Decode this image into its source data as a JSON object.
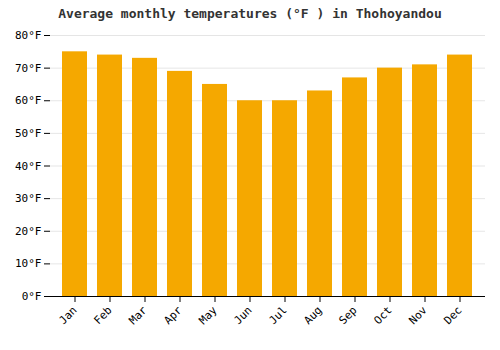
{
  "chart_data": {
    "type": "bar",
    "title": "Average monthly temperatures (°F ) in Thohoyandou",
    "categories": [
      "Jan",
      "Feb",
      "Mar",
      "Apr",
      "May",
      "Jun",
      "Jul",
      "Aug",
      "Sep",
      "Oct",
      "Nov",
      "Dec"
    ],
    "values": [
      75,
      74,
      73,
      69,
      65,
      60,
      60,
      63,
      67,
      70,
      71,
      74
    ],
    "color": "#F5A800",
    "ylim": [
      0,
      80
    ],
    "yticks": [
      {
        "value": 0,
        "label": "0°F"
      },
      {
        "value": 10,
        "label": "10°F"
      },
      {
        "value": 20,
        "label": "20°F"
      },
      {
        "value": 30,
        "label": "30°F"
      },
      {
        "value": 40,
        "label": "40°F"
      },
      {
        "value": 50,
        "label": "50°F"
      },
      {
        "value": 60,
        "label": "60°F"
      },
      {
        "value": 70,
        "label": "70°F"
      },
      {
        "value": 80,
        "label": "80°F"
      }
    ],
    "grid": true
  }
}
